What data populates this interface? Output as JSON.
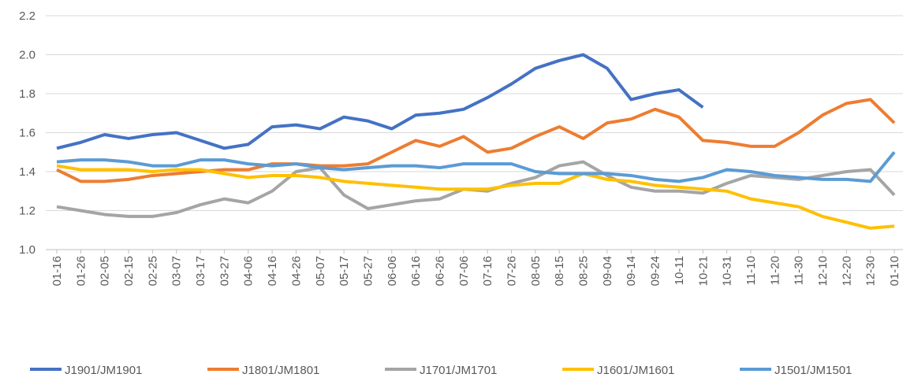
{
  "chart_data": {
    "type": "line",
    "categories": [
      "01-16",
      "01-26",
      "02-05",
      "02-15",
      "02-25",
      "03-07",
      "03-17",
      "03-27",
      "04-06",
      "04-16",
      "04-26",
      "05-07",
      "05-17",
      "05-27",
      "06-06",
      "06-16",
      "06-26",
      "07-06",
      "07-16",
      "07-26",
      "08-05",
      "08-15",
      "08-25",
      "09-04",
      "09-14",
      "09-24",
      "10-11",
      "10-21",
      "10-31",
      "11-10",
      "11-20",
      "11-30",
      "12-10",
      "12-20",
      "12-30",
      "01-10"
    ],
    "series": [
      {
        "name": "J1901/JM1901",
        "color": "#4472c4",
        "values": [
          1.52,
          1.55,
          1.59,
          1.57,
          1.59,
          1.6,
          1.56,
          1.52,
          1.54,
          1.63,
          1.64,
          1.62,
          1.68,
          1.66,
          1.62,
          1.69,
          1.7,
          1.72,
          1.78,
          1.85,
          1.93,
          1.97,
          2.0,
          1.93,
          1.77,
          1.8,
          1.82,
          1.73,
          null,
          null,
          null,
          null,
          null,
          null,
          null,
          null
        ]
      },
      {
        "name": "J1801/JM1801",
        "color": "#ed7d31",
        "values": [
          1.41,
          1.35,
          1.35,
          1.36,
          1.38,
          1.39,
          1.4,
          1.41,
          1.41,
          1.44,
          1.44,
          1.43,
          1.43,
          1.44,
          1.5,
          1.56,
          1.53,
          1.58,
          1.5,
          1.52,
          1.58,
          1.63,
          1.57,
          1.65,
          1.67,
          1.72,
          1.68,
          1.56,
          1.55,
          1.53,
          1.53,
          1.6,
          1.69,
          1.75,
          1.77,
          1.65
        ]
      },
      {
        "name": "J1701/JM1701",
        "color": "#a5a5a5",
        "values": [
          1.22,
          1.2,
          1.18,
          1.17,
          1.17,
          1.19,
          1.23,
          1.26,
          1.24,
          1.3,
          1.4,
          1.42,
          1.28,
          1.21,
          1.23,
          1.25,
          1.26,
          1.31,
          1.3,
          1.34,
          1.37,
          1.43,
          1.45,
          1.38,
          1.32,
          1.3,
          1.3,
          1.29,
          1.34,
          1.38,
          1.37,
          1.36,
          1.38,
          1.4,
          1.41,
          1.28
        ]
      },
      {
        "name": "J1601/JM1601",
        "color": "#ffc000",
        "values": [
          1.43,
          1.41,
          1.41,
          1.41,
          1.4,
          1.41,
          1.41,
          1.39,
          1.37,
          1.38,
          1.38,
          1.37,
          1.35,
          1.34,
          1.33,
          1.32,
          1.31,
          1.31,
          1.31,
          1.33,
          1.34,
          1.34,
          1.39,
          1.36,
          1.35,
          1.33,
          1.32,
          1.31,
          1.3,
          1.26,
          1.24,
          1.22,
          1.17,
          1.14,
          1.11,
          1.12
        ]
      },
      {
        "name": "J1501/JM1501",
        "color": "#5b9bd5",
        "values": [
          1.45,
          1.46,
          1.46,
          1.45,
          1.43,
          1.43,
          1.46,
          1.46,
          1.44,
          1.43,
          1.44,
          1.42,
          1.41,
          1.42,
          1.43,
          1.43,
          1.42,
          1.44,
          1.44,
          1.44,
          1.4,
          1.39,
          1.39,
          1.39,
          1.38,
          1.36,
          1.35,
          1.37,
          1.41,
          1.4,
          1.38,
          1.37,
          1.36,
          1.36,
          1.35,
          1.5
        ]
      }
    ],
    "ylim": [
      1.0,
      2.2
    ],
    "yticks": [
      {
        "value": 1.0,
        "label": "1.0"
      },
      1.2,
      1.4,
      1.6,
      1.8,
      {
        "value": 2.0,
        "label": "2.0"
      },
      2.2
    ],
    "grid": true,
    "legend": "bottom"
  }
}
